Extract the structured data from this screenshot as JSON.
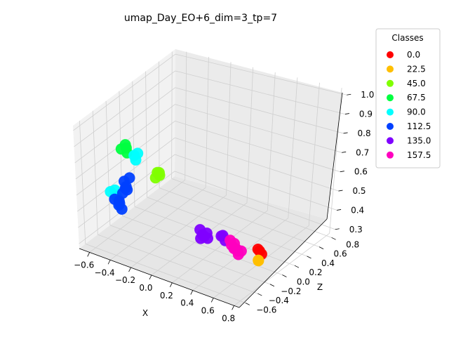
{
  "chart_data": {
    "type": "scatter",
    "title": "umap_Day_EO+6_dim=3_tp=7",
    "xlabel": "X",
    "ylabel": "",
    "zlabel": "Z",
    "grid": true,
    "legend": {
      "title": "Classes",
      "placement": "outside right"
    },
    "x_ticks": [
      "−0.6",
      "−0.4",
      "−0.2",
      "0.0",
      "0.2",
      "0.4",
      "0.6",
      "0.8"
    ],
    "y_ticks": [
      "−0.6",
      "−0.4",
      "−0.2",
      "0.0",
      "0.2",
      "0.4",
      "0.6",
      "0.8"
    ],
    "z_ticks": [
      "0.3",
      "0.4",
      "0.5",
      "0.6",
      "0.7",
      "0.8",
      "0.9",
      "1.0"
    ],
    "series": [
      {
        "name": "0.0",
        "color": "#ff0000",
        "points": [
          [
            0.65,
            -0.05,
            0.37
          ],
          [
            0.66,
            -0.03,
            0.35
          ],
          [
            0.64,
            -0.06,
            0.38
          ]
        ]
      },
      {
        "name": "22.5",
        "color": "#ffbf00",
        "points": [
          [
            0.66,
            -0.08,
            0.33
          ],
          [
            0.65,
            -0.06,
            0.32
          ]
        ]
      },
      {
        "name": "45.0",
        "color": "#80ff00",
        "points": [
          [
            -0.18,
            -0.3,
            0.72
          ],
          [
            -0.15,
            -0.32,
            0.73
          ],
          [
            -0.17,
            -0.28,
            0.7
          ],
          [
            -0.19,
            -0.31,
            0.69
          ]
        ]
      },
      {
        "name": "67.5",
        "color": "#00ff40",
        "points": [
          [
            -0.42,
            -0.45,
            0.86
          ],
          [
            -0.38,
            -0.44,
            0.87
          ],
          [
            -0.4,
            -0.42,
            0.88
          ],
          [
            -0.36,
            -0.46,
            0.85
          ]
        ]
      },
      {
        "name": "90.0",
        "color": "#00ffff",
        "points": [
          [
            -0.3,
            -0.4,
            0.84
          ],
          [
            -0.33,
            -0.38,
            0.79
          ],
          [
            -0.32,
            -0.42,
            0.83
          ],
          [
            -0.52,
            -0.4,
            0.58
          ],
          [
            -0.55,
            -0.42,
            0.57
          ],
          [
            -0.5,
            -0.41,
            0.55
          ]
        ]
      },
      {
        "name": "112.5",
        "color": "#0040ff",
        "points": [
          [
            -0.38,
            -0.4,
            0.68
          ],
          [
            -0.4,
            -0.42,
            0.63
          ],
          [
            -0.42,
            -0.4,
            0.61
          ],
          [
            -0.44,
            -0.41,
            0.58
          ],
          [
            -0.46,
            -0.43,
            0.52
          ],
          [
            -0.48,
            -0.41,
            0.5
          ],
          [
            -0.44,
            -0.43,
            0.49
          ],
          [
            -0.5,
            -0.44,
            0.54
          ],
          [
            -0.41,
            -0.39,
            0.6
          ],
          [
            -0.47,
            -0.42,
            0.53
          ],
          [
            -0.43,
            -0.4,
            0.65
          ]
        ]
      },
      {
        "name": "135.0",
        "color": "#7f00ff",
        "points": [
          [
            0.12,
            -0.12,
            0.4
          ],
          [
            0.15,
            -0.13,
            0.38
          ],
          [
            0.18,
            -0.11,
            0.39
          ],
          [
            0.14,
            -0.14,
            0.36
          ],
          [
            0.16,
            -0.12,
            0.37
          ],
          [
            0.32,
            -0.09,
            0.4
          ],
          [
            0.3,
            -0.08,
            0.39
          ],
          [
            0.35,
            -0.1,
            0.38
          ],
          [
            0.2,
            -0.13,
            0.37
          ]
        ]
      },
      {
        "name": "157.5",
        "color": "#ff00bf",
        "points": [
          [
            0.4,
            -0.08,
            0.36
          ],
          [
            0.43,
            -0.09,
            0.35
          ],
          [
            0.46,
            -0.08,
            0.34
          ],
          [
            0.42,
            -0.07,
            0.37
          ],
          [
            0.48,
            -0.1,
            0.33
          ],
          [
            0.38,
            -0.07,
            0.38
          ],
          [
            0.45,
            -0.11,
            0.36
          ],
          [
            0.5,
            -0.09,
            0.35
          ],
          [
            0.44,
            -0.06,
            0.34
          ]
        ]
      }
    ]
  }
}
